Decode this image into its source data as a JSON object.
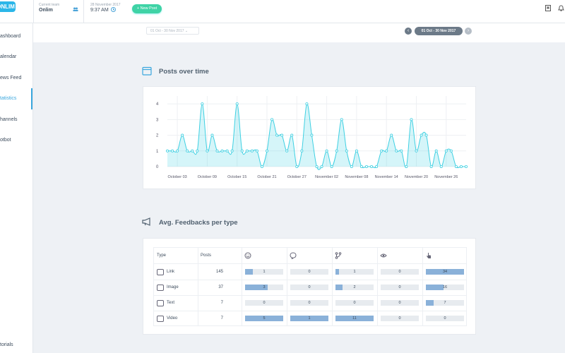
{
  "header": {
    "logo": "ONLIM",
    "team_label": "Current team",
    "team": "Onlim",
    "date": "28 November 2017",
    "time": "9:37 AM",
    "new_post": "+ New Post"
  },
  "sidebar": {
    "items": [
      "ashboard",
      "alendar",
      "ews Feed",
      "tatistics",
      "hannels",
      "otbot"
    ],
    "footer": "torials"
  },
  "date_range": {
    "picker": "01 Oct - 30 Nov 2017",
    "current": "01 Oct - 30 Nov 2017"
  },
  "chart_data": {
    "type": "area",
    "title": "Posts over time",
    "categories": [
      null,
      null,
      "October 03",
      null,
      null,
      null,
      null,
      null,
      "October 09",
      null,
      null,
      null,
      null,
      null,
      "October 15",
      null,
      null,
      null,
      null,
      null,
      "October 21",
      null,
      null,
      null,
      null,
      null,
      "October 27",
      null,
      null,
      null,
      null,
      null,
      "November 02",
      null,
      null,
      null,
      null,
      null,
      "November 08",
      null,
      null,
      null,
      null,
      null,
      "November 14",
      null,
      null,
      null,
      null,
      null,
      "November 20",
      null,
      null,
      null,
      null,
      null,
      "November 26",
      null,
      null,
      null,
      null
    ],
    "series": [
      {
        "name": "Posts",
        "color": "#3fd0e2",
        "values": [
          1,
          1,
          1,
          2,
          1,
          1,
          1,
          4,
          1,
          2,
          1,
          1,
          1,
          1,
          4,
          1,
          1,
          1,
          1,
          0,
          1,
          3,
          2,
          2,
          1,
          2,
          0,
          1,
          4,
          2,
          0,
          0,
          1,
          0,
          1,
          3,
          1,
          0,
          1,
          0,
          0,
          0,
          0,
          1,
          1,
          2,
          1,
          1,
          0,
          3,
          1,
          2,
          2,
          0,
          1,
          0,
          1,
          1,
          0,
          0,
          0
        ]
      }
    ],
    "ylim": [
      0,
      4.5
    ],
    "yticks": [
      0,
      1,
      2,
      3,
      4
    ],
    "grid": true
  },
  "feedbacks": {
    "title": "Avg. Feedbacks per type",
    "columns": [
      "Type",
      "Posts"
    ],
    "rows": [
      {
        "type": "Link",
        "posts": 145,
        "feedbacks": [
          1,
          0,
          1,
          0,
          34
        ]
      },
      {
        "type": "Image",
        "posts": 37,
        "feedbacks": [
          3,
          0,
          2,
          0,
          16
        ]
      },
      {
        "type": "Text",
        "posts": 7,
        "feedbacks": [
          0,
          0,
          0,
          0,
          7
        ]
      },
      {
        "type": "Video",
        "posts": 7,
        "feedbacks": [
          5,
          1,
          11,
          0,
          0
        ]
      }
    ]
  }
}
